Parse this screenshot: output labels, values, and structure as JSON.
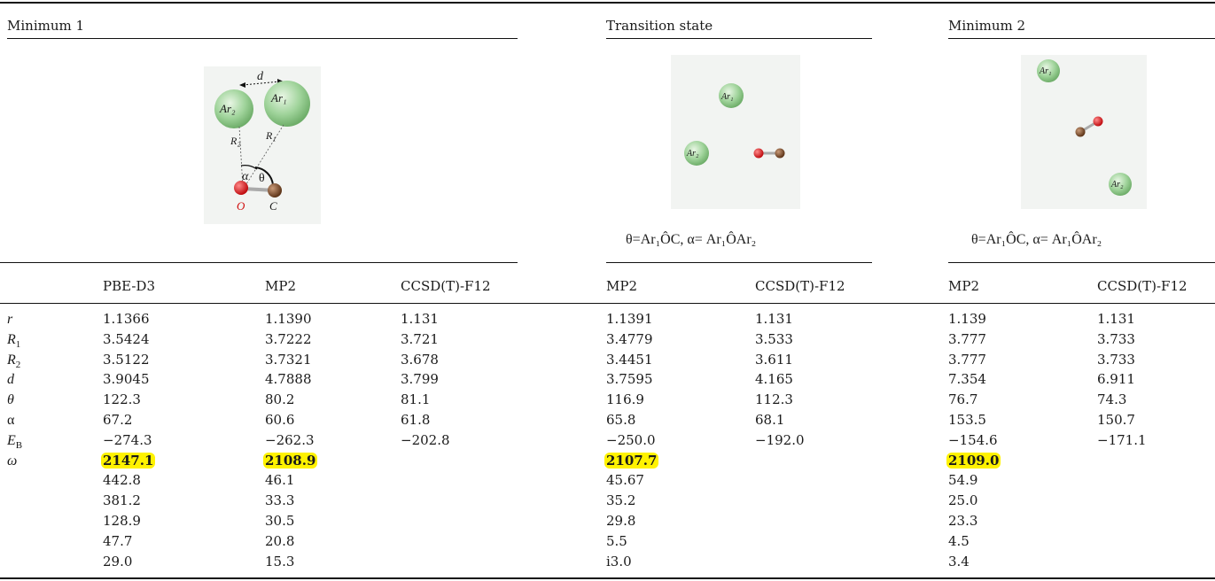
{
  "sections": {
    "min1": "Minimum 1",
    "ts": "Transition state",
    "min2": "Minimum 2"
  },
  "captions": {
    "ts": "θ=Ar₁ÔC, α= Ar₁ÔAr₂",
    "min2": "θ=Ar₁ÔC, α= Ar₁ÔAr₂"
  },
  "figure_labels": {
    "d": "d",
    "ar1": "Ar₁",
    "ar2": "Ar₂",
    "r1": "R₁",
    "r2": "R₂",
    "alpha": "α",
    "theta": "θ",
    "o": "O",
    "c": "C"
  },
  "headers": [
    "PBE-D3",
    "MP2",
    "CCSD(T)-F12",
    "MP2",
    "CCSD(T)-F12",
    "MP2",
    "CCSD(T)-F12"
  ],
  "row_labels": [
    {
      "main": "r",
      "sub": ""
    },
    {
      "main": "R",
      "sub": "1"
    },
    {
      "main": "R",
      "sub": "2"
    },
    {
      "main": "d",
      "sub": ""
    },
    {
      "main": "θ",
      "sub": ""
    },
    {
      "main": "α",
      "sub": ""
    },
    {
      "main": "E",
      "sub": "B"
    },
    {
      "main": "ω",
      "sub": ""
    }
  ],
  "rows": [
    [
      "1.1366",
      "1.1390",
      "1.131",
      "1.1391",
      "1.131",
      "1.139",
      "1.131"
    ],
    [
      "3.5424",
      "3.7222",
      "3.721",
      "3.4779",
      "3.533",
      "3.777",
      "3.733"
    ],
    [
      "3.5122",
      "3.7321",
      "3.678",
      "3.4451",
      "3.611",
      "3.777",
      "3.733"
    ],
    [
      "3.9045",
      "4.7888",
      "3.799",
      "3.7595",
      "4.165",
      "7.354",
      "6.911"
    ],
    [
      "122.3",
      "80.2",
      "81.1",
      "116.9",
      "112.3",
      "76.7",
      "74.3"
    ],
    [
      "67.2",
      "60.6",
      "61.8",
      "65.8",
      "68.1",
      "153.5",
      "150.7"
    ],
    [
      "−274.3",
      "−262.3",
      "−202.8",
      "−250.0",
      "−192.0",
      "−154.6",
      "−171.1"
    ],
    [
      "2147.1",
      "2108.9",
      "",
      "2107.7",
      "",
      "2109.0",
      ""
    ],
    [
      "442.8",
      "46.1",
      "",
      "45.67",
      "",
      "54.9",
      ""
    ],
    [
      "381.2",
      "33.3",
      "",
      "35.2",
      "",
      "25.0",
      ""
    ],
    [
      "128.9",
      "30.5",
      "",
      "29.8",
      "",
      "23.3",
      ""
    ],
    [
      "47.7",
      "20.8",
      "",
      "5.5",
      "",
      "4.5",
      ""
    ],
    [
      "29.0",
      "15.3",
      "",
      "i3.0",
      "",
      "3.4",
      ""
    ]
  ],
  "highlighted_row": 7,
  "colors": {
    "highlight": "#fff200",
    "argon": "#9fd39a",
    "oxygen": "#e0161b",
    "carbon": "#7a4a2a"
  }
}
